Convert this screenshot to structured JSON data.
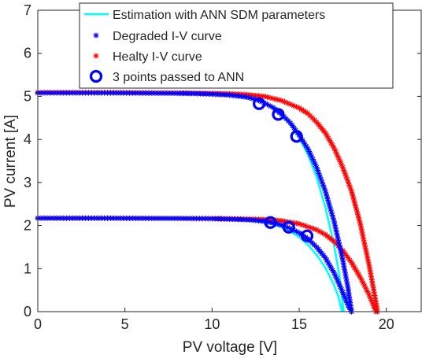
{
  "chart_data": {
    "type": "scatter",
    "xlabel": "PV voltage [V]",
    "ylabel": "PV current [A]",
    "xlim": [
      0,
      22
    ],
    "ylim": [
      0,
      7
    ],
    "xticks": [
      0,
      5,
      10,
      15,
      20
    ],
    "yticks": [
      0,
      1,
      2,
      3,
      4,
      5,
      6,
      7
    ],
    "grid": false,
    "box": true,
    "legend_position": "top-right",
    "series": [
      {
        "name": "Estimation with ANN SDM parameters",
        "style": "line",
        "color": "#00ffff",
        "curves": [
          [
            [
              0,
              5.08
            ],
            [
              2,
              5.08
            ],
            [
              4,
              5.08
            ],
            [
              6,
              5.075
            ],
            [
              8,
              5.07
            ],
            [
              9,
              5.065
            ],
            [
              10,
              5.05
            ],
            [
              11,
              5.03
            ],
            [
              12,
              4.98
            ],
            [
              12.5,
              4.93
            ],
            [
              13,
              4.85
            ],
            [
              13.5,
              4.73
            ],
            [
              14,
              4.57
            ],
            [
              14.5,
              4.35
            ],
            [
              15,
              4.05
            ],
            [
              15.5,
              3.65
            ],
            [
              16,
              3.12
            ],
            [
              16.5,
              2.42
            ],
            [
              17,
              1.55
            ],
            [
              17.3,
              0.85
            ],
            [
              17.55,
              0.0
            ]
          ],
          [
            [
              0,
              2.17
            ],
            [
              4,
              2.17
            ],
            [
              8,
              2.165
            ],
            [
              10,
              2.16
            ],
            [
              11,
              2.15
            ],
            [
              12,
              2.13
            ],
            [
              12.5,
              2.11
            ],
            [
              13,
              2.08
            ],
            [
              13.5,
              2.04
            ],
            [
              14,
              1.96
            ],
            [
              14.5,
              1.86
            ],
            [
              15,
              1.73
            ],
            [
              15.5,
              1.55
            ],
            [
              16,
              1.32
            ],
            [
              16.5,
              1.02
            ],
            [
              17,
              0.62
            ],
            [
              17.25,
              0.35
            ],
            [
              17.45,
              0.0
            ]
          ]
        ]
      },
      {
        "name": "Degraded I-V curve",
        "style": "markers",
        "marker": "asterisk",
        "color": "#0000ff",
        "curves": [
          [
            [
              0,
              5.08
            ],
            [
              2,
              5.08
            ],
            [
              4,
              5.08
            ],
            [
              6,
              5.075
            ],
            [
              8,
              5.07
            ],
            [
              9,
              5.065
            ],
            [
              10,
              5.05
            ],
            [
              11,
              5.03
            ],
            [
              12,
              4.98
            ],
            [
              12.5,
              4.93
            ],
            [
              13,
              4.85
            ],
            [
              13.5,
              4.74
            ],
            [
              14,
              4.58
            ],
            [
              14.5,
              4.38
            ],
            [
              15,
              4.1
            ],
            [
              15.5,
              3.78
            ],
            [
              16,
              3.35
            ],
            [
              16.5,
              2.8
            ],
            [
              17,
              2.1
            ],
            [
              17.5,
              1.2
            ],
            [
              17.8,
              0.55
            ],
            [
              18,
              0.0
            ]
          ],
          [
            [
              0,
              2.17
            ],
            [
              4,
              2.17
            ],
            [
              8,
              2.165
            ],
            [
              10,
              2.16
            ],
            [
              11,
              2.15
            ],
            [
              12,
              2.135
            ],
            [
              12.5,
              2.12
            ],
            [
              13,
              2.095
            ],
            [
              13.5,
              2.06
            ],
            [
              14,
              2.01
            ],
            [
              14.5,
              1.93
            ],
            [
              15,
              1.83
            ],
            [
              15.5,
              1.69
            ],
            [
              16,
              1.5
            ],
            [
              16.5,
              1.25
            ],
            [
              17,
              0.9
            ],
            [
              17.5,
              0.45
            ],
            [
              17.8,
              0.15
            ],
            [
              18,
              0.0
            ]
          ]
        ]
      },
      {
        "name": "Healty I-V curve",
        "style": "markers",
        "marker": "asterisk",
        "color": "#ff0000",
        "curves": [
          [
            [
              0,
              5.09
            ],
            [
              2,
              5.09
            ],
            [
              4,
              5.09
            ],
            [
              6,
              5.085
            ],
            [
              8,
              5.08
            ],
            [
              10,
              5.07
            ],
            [
              11,
              5.06
            ],
            [
              12,
              5.04
            ],
            [
              13,
              5.0
            ],
            [
              14,
              4.9
            ],
            [
              15,
              4.73
            ],
            [
              15.5,
              4.6
            ],
            [
              16,
              4.4
            ],
            [
              16.5,
              4.15
            ],
            [
              17,
              3.8
            ],
            [
              17.5,
              3.35
            ],
            [
              18,
              2.8
            ],
            [
              18.5,
              2.05
            ],
            [
              19,
              1.1
            ],
            [
              19.3,
              0.45
            ],
            [
              19.5,
              0.0
            ]
          ],
          [
            [
              0,
              2.17
            ],
            [
              4,
              2.17
            ],
            [
              8,
              2.165
            ],
            [
              10,
              2.16
            ],
            [
              12,
              2.15
            ],
            [
              13,
              2.14
            ],
            [
              14,
              2.11
            ],
            [
              15,
              2.04
            ],
            [
              16,
              1.9
            ],
            [
              16.5,
              1.79
            ],
            [
              17,
              1.63
            ],
            [
              17.5,
              1.42
            ],
            [
              18,
              1.14
            ],
            [
              18.5,
              0.8
            ],
            [
              19,
              0.4
            ],
            [
              19.2,
              0.2
            ],
            [
              19.4,
              0.0
            ]
          ]
        ]
      },
      {
        "name": "3 points passed to ANN",
        "style": "markers",
        "marker": "circle",
        "color": "#0000ff",
        "points": [
          [
            12.7,
            4.83
          ],
          [
            13.8,
            4.58
          ],
          [
            14.85,
            4.07
          ],
          [
            13.35,
            2.07
          ],
          [
            14.4,
            1.96
          ],
          [
            15.45,
            1.76
          ]
        ]
      }
    ]
  }
}
